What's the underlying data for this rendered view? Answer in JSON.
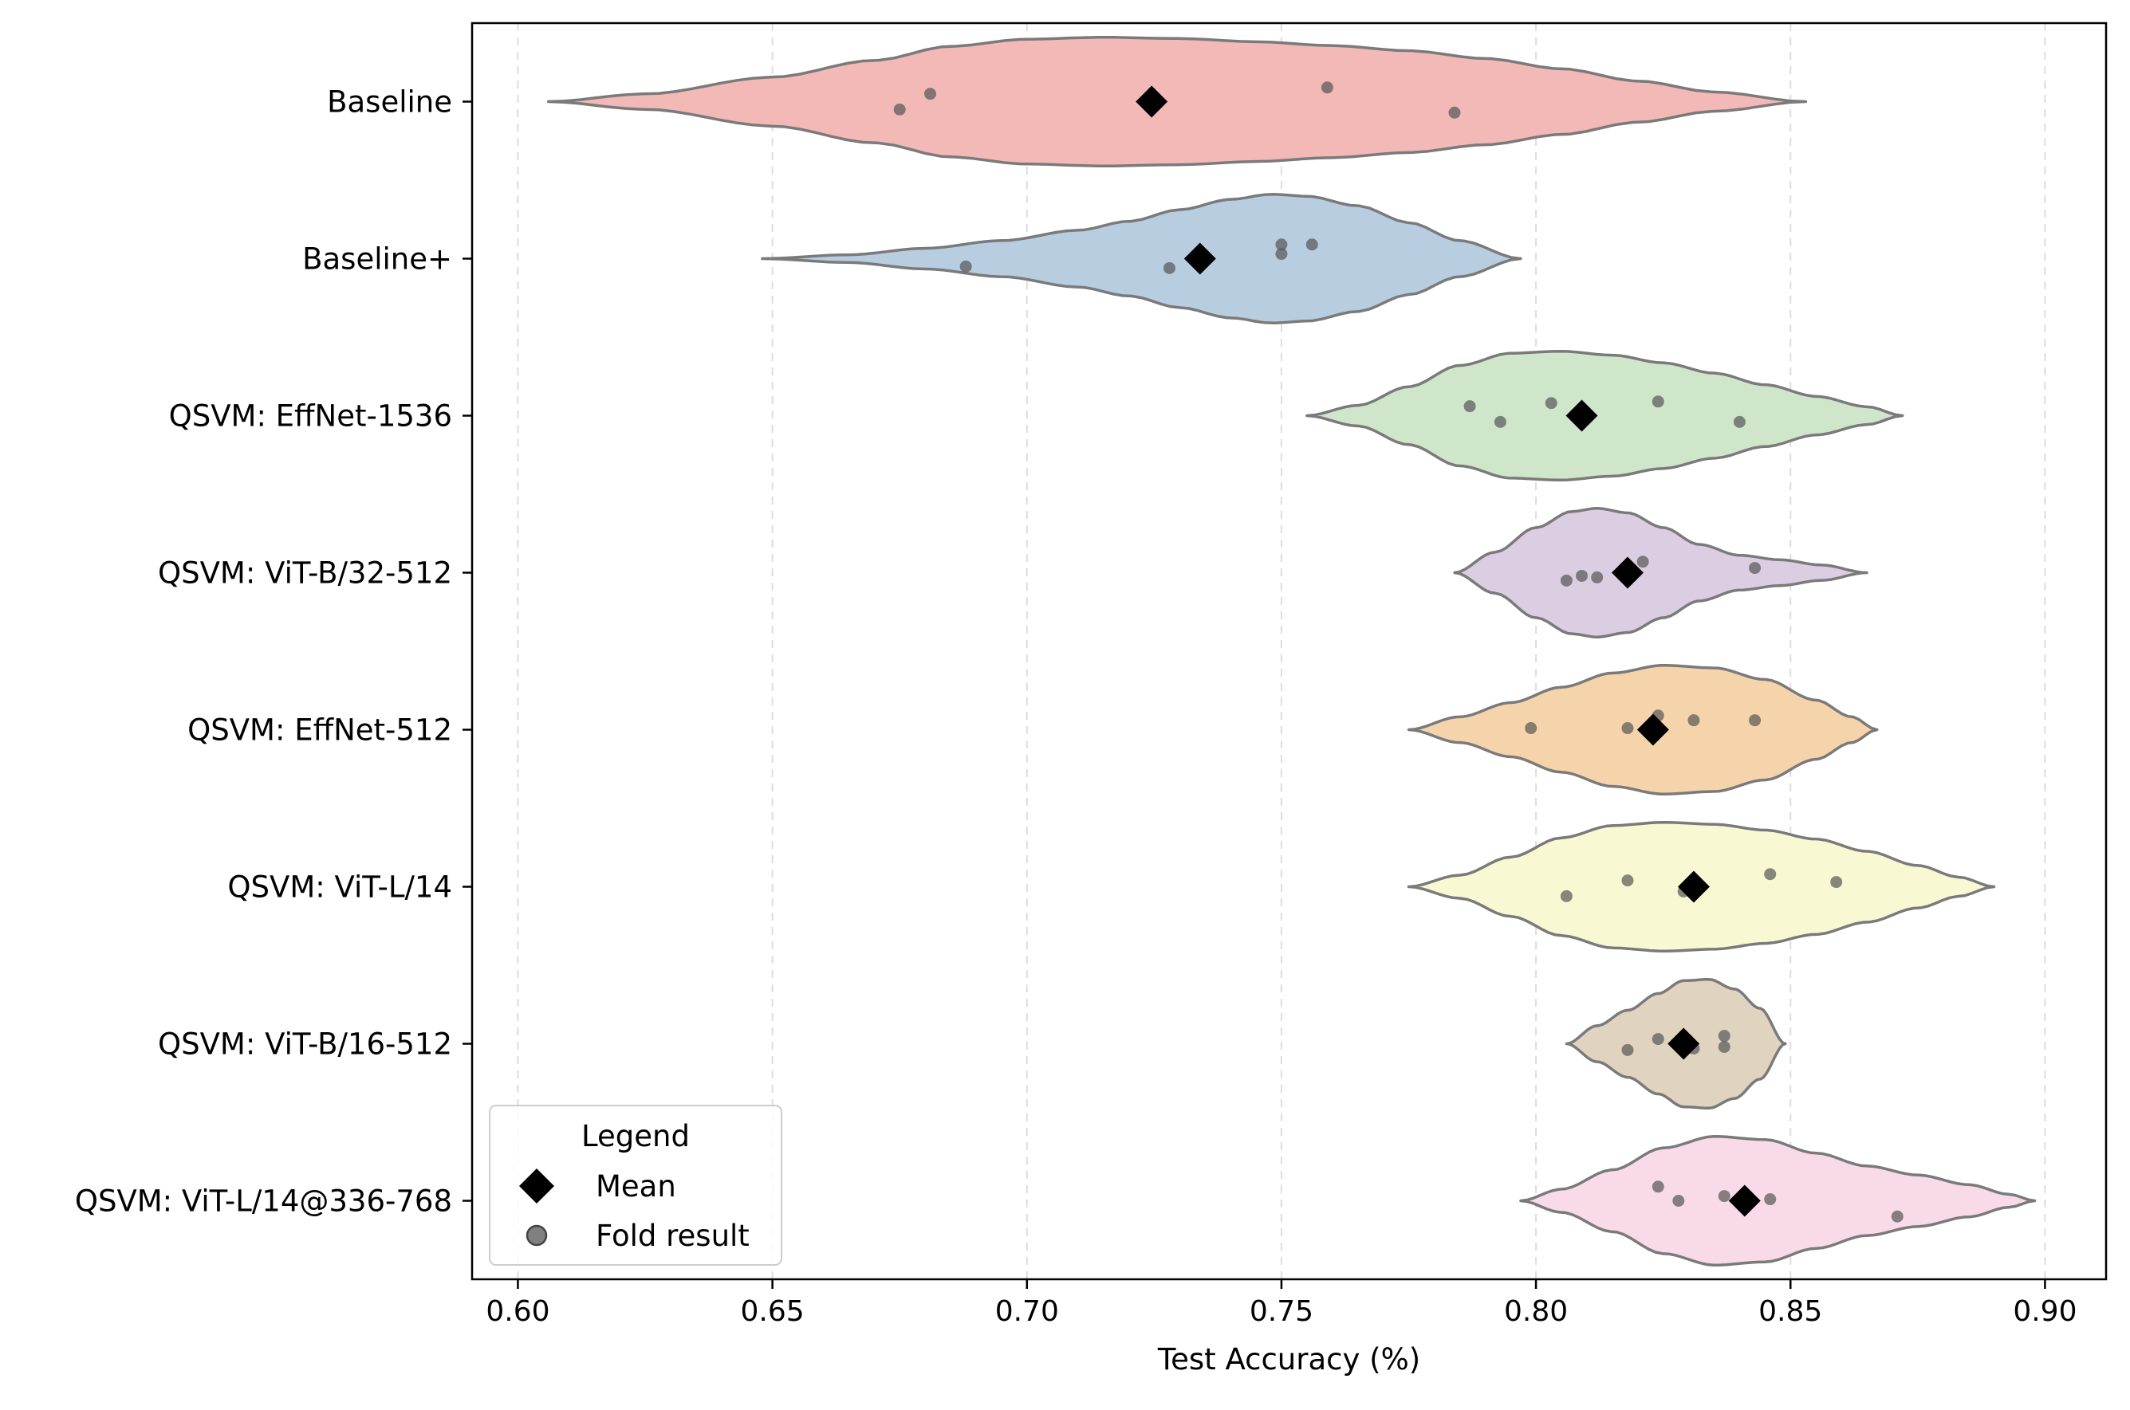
{
  "chart_data": {
    "type": "violin",
    "orientation": "horizontal",
    "xlabel": "Test Accuracy (%)",
    "ylabel": "",
    "xlim": [
      0.591,
      0.912
    ],
    "xticks": [
      0.6,
      0.65,
      0.7,
      0.75,
      0.8,
      0.85,
      0.9
    ],
    "xtick_labels": [
      "0.60",
      "0.65",
      "0.70",
      "0.75",
      "0.80",
      "0.85",
      "0.90"
    ],
    "grid": "vertical-dashed",
    "legend": {
      "title": "Legend",
      "placement": "bottom-left",
      "entries": [
        {
          "label": "Mean",
          "marker": "diamond",
          "color": "#000000"
        },
        {
          "label": "Fold result",
          "marker": "circle",
          "color": "#808080"
        }
      ]
    },
    "series": [
      {
        "label": "Baseline",
        "color": "#f2b9b7",
        "range": [
          0.606,
          0.853
        ],
        "mean": 0.7245,
        "folds": [
          0.675,
          0.681,
          0.759,
          0.784
        ],
        "fold_jitter": [
          0.05,
          -0.05,
          -0.09,
          0.07
        ],
        "profile": [
          [
            0.606,
            0.0
          ],
          [
            0.625,
            0.12
          ],
          [
            0.65,
            0.38
          ],
          [
            0.67,
            0.64
          ],
          [
            0.685,
            0.86
          ],
          [
            0.7,
            0.97
          ],
          [
            0.715,
            1.0
          ],
          [
            0.73,
            0.98
          ],
          [
            0.745,
            0.93
          ],
          [
            0.76,
            0.87
          ],
          [
            0.775,
            0.79
          ],
          [
            0.79,
            0.67
          ],
          [
            0.805,
            0.51
          ],
          [
            0.82,
            0.32
          ],
          [
            0.835,
            0.15
          ],
          [
            0.853,
            0.0
          ]
        ],
        "scale": 0.82
      },
      {
        "label": "Baseline+",
        "color": "#b8cde0",
        "range": [
          0.648,
          0.797
        ],
        "mean": 0.734,
        "folds": [
          0.688,
          0.728,
          0.75,
          0.75,
          0.756
        ],
        "fold_jitter": [
          0.05,
          0.06,
          -0.09,
          -0.03,
          -0.09
        ],
        "profile": [
          [
            0.648,
            0.0
          ],
          [
            0.665,
            0.06
          ],
          [
            0.68,
            0.16
          ],
          [
            0.695,
            0.28
          ],
          [
            0.71,
            0.44
          ],
          [
            0.72,
            0.58
          ],
          [
            0.73,
            0.76
          ],
          [
            0.74,
            0.92
          ],
          [
            0.748,
            1.0
          ],
          [
            0.755,
            0.97
          ],
          [
            0.765,
            0.82
          ],
          [
            0.775,
            0.56
          ],
          [
            0.785,
            0.28
          ],
          [
            0.797,
            0.0
          ]
        ],
        "scale": 0.82
      },
      {
        "label": "QSVM: EffNet-1536",
        "color": "#d0e6cb",
        "range": [
          0.755,
          0.872
        ],
        "mean": 0.809,
        "folds": [
          0.787,
          0.793,
          0.803,
          0.824,
          0.84
        ],
        "fold_jitter": [
          -0.06,
          0.04,
          -0.08,
          -0.09,
          0.04
        ],
        "profile": [
          [
            0.755,
            0.0
          ],
          [
            0.765,
            0.16
          ],
          [
            0.775,
            0.45
          ],
          [
            0.785,
            0.78
          ],
          [
            0.795,
            0.97
          ],
          [
            0.805,
            1.0
          ],
          [
            0.815,
            0.94
          ],
          [
            0.825,
            0.82
          ],
          [
            0.835,
            0.66
          ],
          [
            0.845,
            0.48
          ],
          [
            0.855,
            0.3
          ],
          [
            0.865,
            0.14
          ],
          [
            0.872,
            0.0
          ]
        ],
        "scale": 0.82
      },
      {
        "label": "QSVM: ViT-B/32-512",
        "color": "#dbcde2",
        "range": [
          0.784,
          0.865
        ],
        "mean": 0.818,
        "folds": [
          0.806,
          0.809,
          0.812,
          0.821,
          0.843
        ],
        "fold_jitter": [
          0.05,
          0.02,
          0.03,
          -0.07,
          -0.03
        ],
        "profile": [
          [
            0.784,
            0.0
          ],
          [
            0.792,
            0.32
          ],
          [
            0.8,
            0.7
          ],
          [
            0.807,
            0.95
          ],
          [
            0.812,
            1.0
          ],
          [
            0.818,
            0.93
          ],
          [
            0.825,
            0.7
          ],
          [
            0.832,
            0.44
          ],
          [
            0.84,
            0.27
          ],
          [
            0.848,
            0.2
          ],
          [
            0.856,
            0.12
          ],
          [
            0.865,
            0.0
          ]
        ],
        "scale": 0.82
      },
      {
        "label": "QSVM: EffNet-512",
        "color": "#f5d4ab",
        "range": [
          0.775,
          0.867
        ],
        "mean": 0.823,
        "folds": [
          0.799,
          0.818,
          0.824,
          0.831,
          0.843
        ],
        "fold_jitter": [
          -0.01,
          -0.01,
          -0.09,
          -0.06,
          -0.06
        ],
        "profile": [
          [
            0.775,
            0.0
          ],
          [
            0.785,
            0.2
          ],
          [
            0.795,
            0.42
          ],
          [
            0.805,
            0.66
          ],
          [
            0.815,
            0.88
          ],
          [
            0.825,
            1.0
          ],
          [
            0.835,
            0.96
          ],
          [
            0.845,
            0.78
          ],
          [
            0.855,
            0.46
          ],
          [
            0.862,
            0.2
          ],
          [
            0.867,
            0.0
          ]
        ],
        "scale": 0.82
      },
      {
        "label": "QSVM: ViT-L/14",
        "color": "#f8f8d2",
        "range": [
          0.775,
          0.89
        ],
        "mean": 0.831,
        "folds": [
          0.806,
          0.818,
          0.829,
          0.846,
          0.859
        ],
        "fold_jitter": [
          0.06,
          -0.04,
          0.03,
          -0.08,
          -0.03
        ],
        "profile": [
          [
            0.775,
            0.0
          ],
          [
            0.785,
            0.18
          ],
          [
            0.795,
            0.46
          ],
          [
            0.805,
            0.76
          ],
          [
            0.815,
            0.95
          ],
          [
            0.825,
            1.0
          ],
          [
            0.835,
            0.97
          ],
          [
            0.845,
            0.88
          ],
          [
            0.855,
            0.74
          ],
          [
            0.865,
            0.55
          ],
          [
            0.875,
            0.33
          ],
          [
            0.883,
            0.15
          ],
          [
            0.89,
            0.0
          ]
        ],
        "scale": 0.82
      },
      {
        "label": "QSVM: ViT-B/16-512",
        "color": "#e0d3bf",
        "range": [
          0.806,
          0.849
        ],
        "mean": 0.829,
        "folds": [
          0.818,
          0.824,
          0.831,
          0.837,
          0.837
        ],
        "fold_jitter": [
          0.04,
          -0.03,
          0.03,
          -0.05,
          0.02
        ],
        "profile": [
          [
            0.806,
            0.0
          ],
          [
            0.812,
            0.28
          ],
          [
            0.818,
            0.52
          ],
          [
            0.824,
            0.78
          ],
          [
            0.829,
            0.98
          ],
          [
            0.834,
            1.0
          ],
          [
            0.839,
            0.85
          ],
          [
            0.844,
            0.55
          ],
          [
            0.849,
            0.0
          ]
        ],
        "scale": 0.82
      },
      {
        "label": "QSVM: ViT-L/14@336-768",
        "color": "#f9dae8",
        "range": [
          0.797,
          0.898
        ],
        "mean": 0.841,
        "folds": [
          0.824,
          0.828,
          0.837,
          0.846,
          0.871
        ],
        "fold_jitter": [
          -0.09,
          0.0,
          -0.03,
          -0.01,
          0.1
        ],
        "profile": [
          [
            0.797,
            0.0
          ],
          [
            0.805,
            0.18
          ],
          [
            0.815,
            0.48
          ],
          [
            0.825,
            0.82
          ],
          [
            0.835,
            1.0
          ],
          [
            0.845,
            0.95
          ],
          [
            0.855,
            0.74
          ],
          [
            0.865,
            0.54
          ],
          [
            0.875,
            0.4
          ],
          [
            0.885,
            0.25
          ],
          [
            0.893,
            0.1
          ],
          [
            0.898,
            0.0
          ]
        ],
        "scale": 0.82
      }
    ]
  }
}
